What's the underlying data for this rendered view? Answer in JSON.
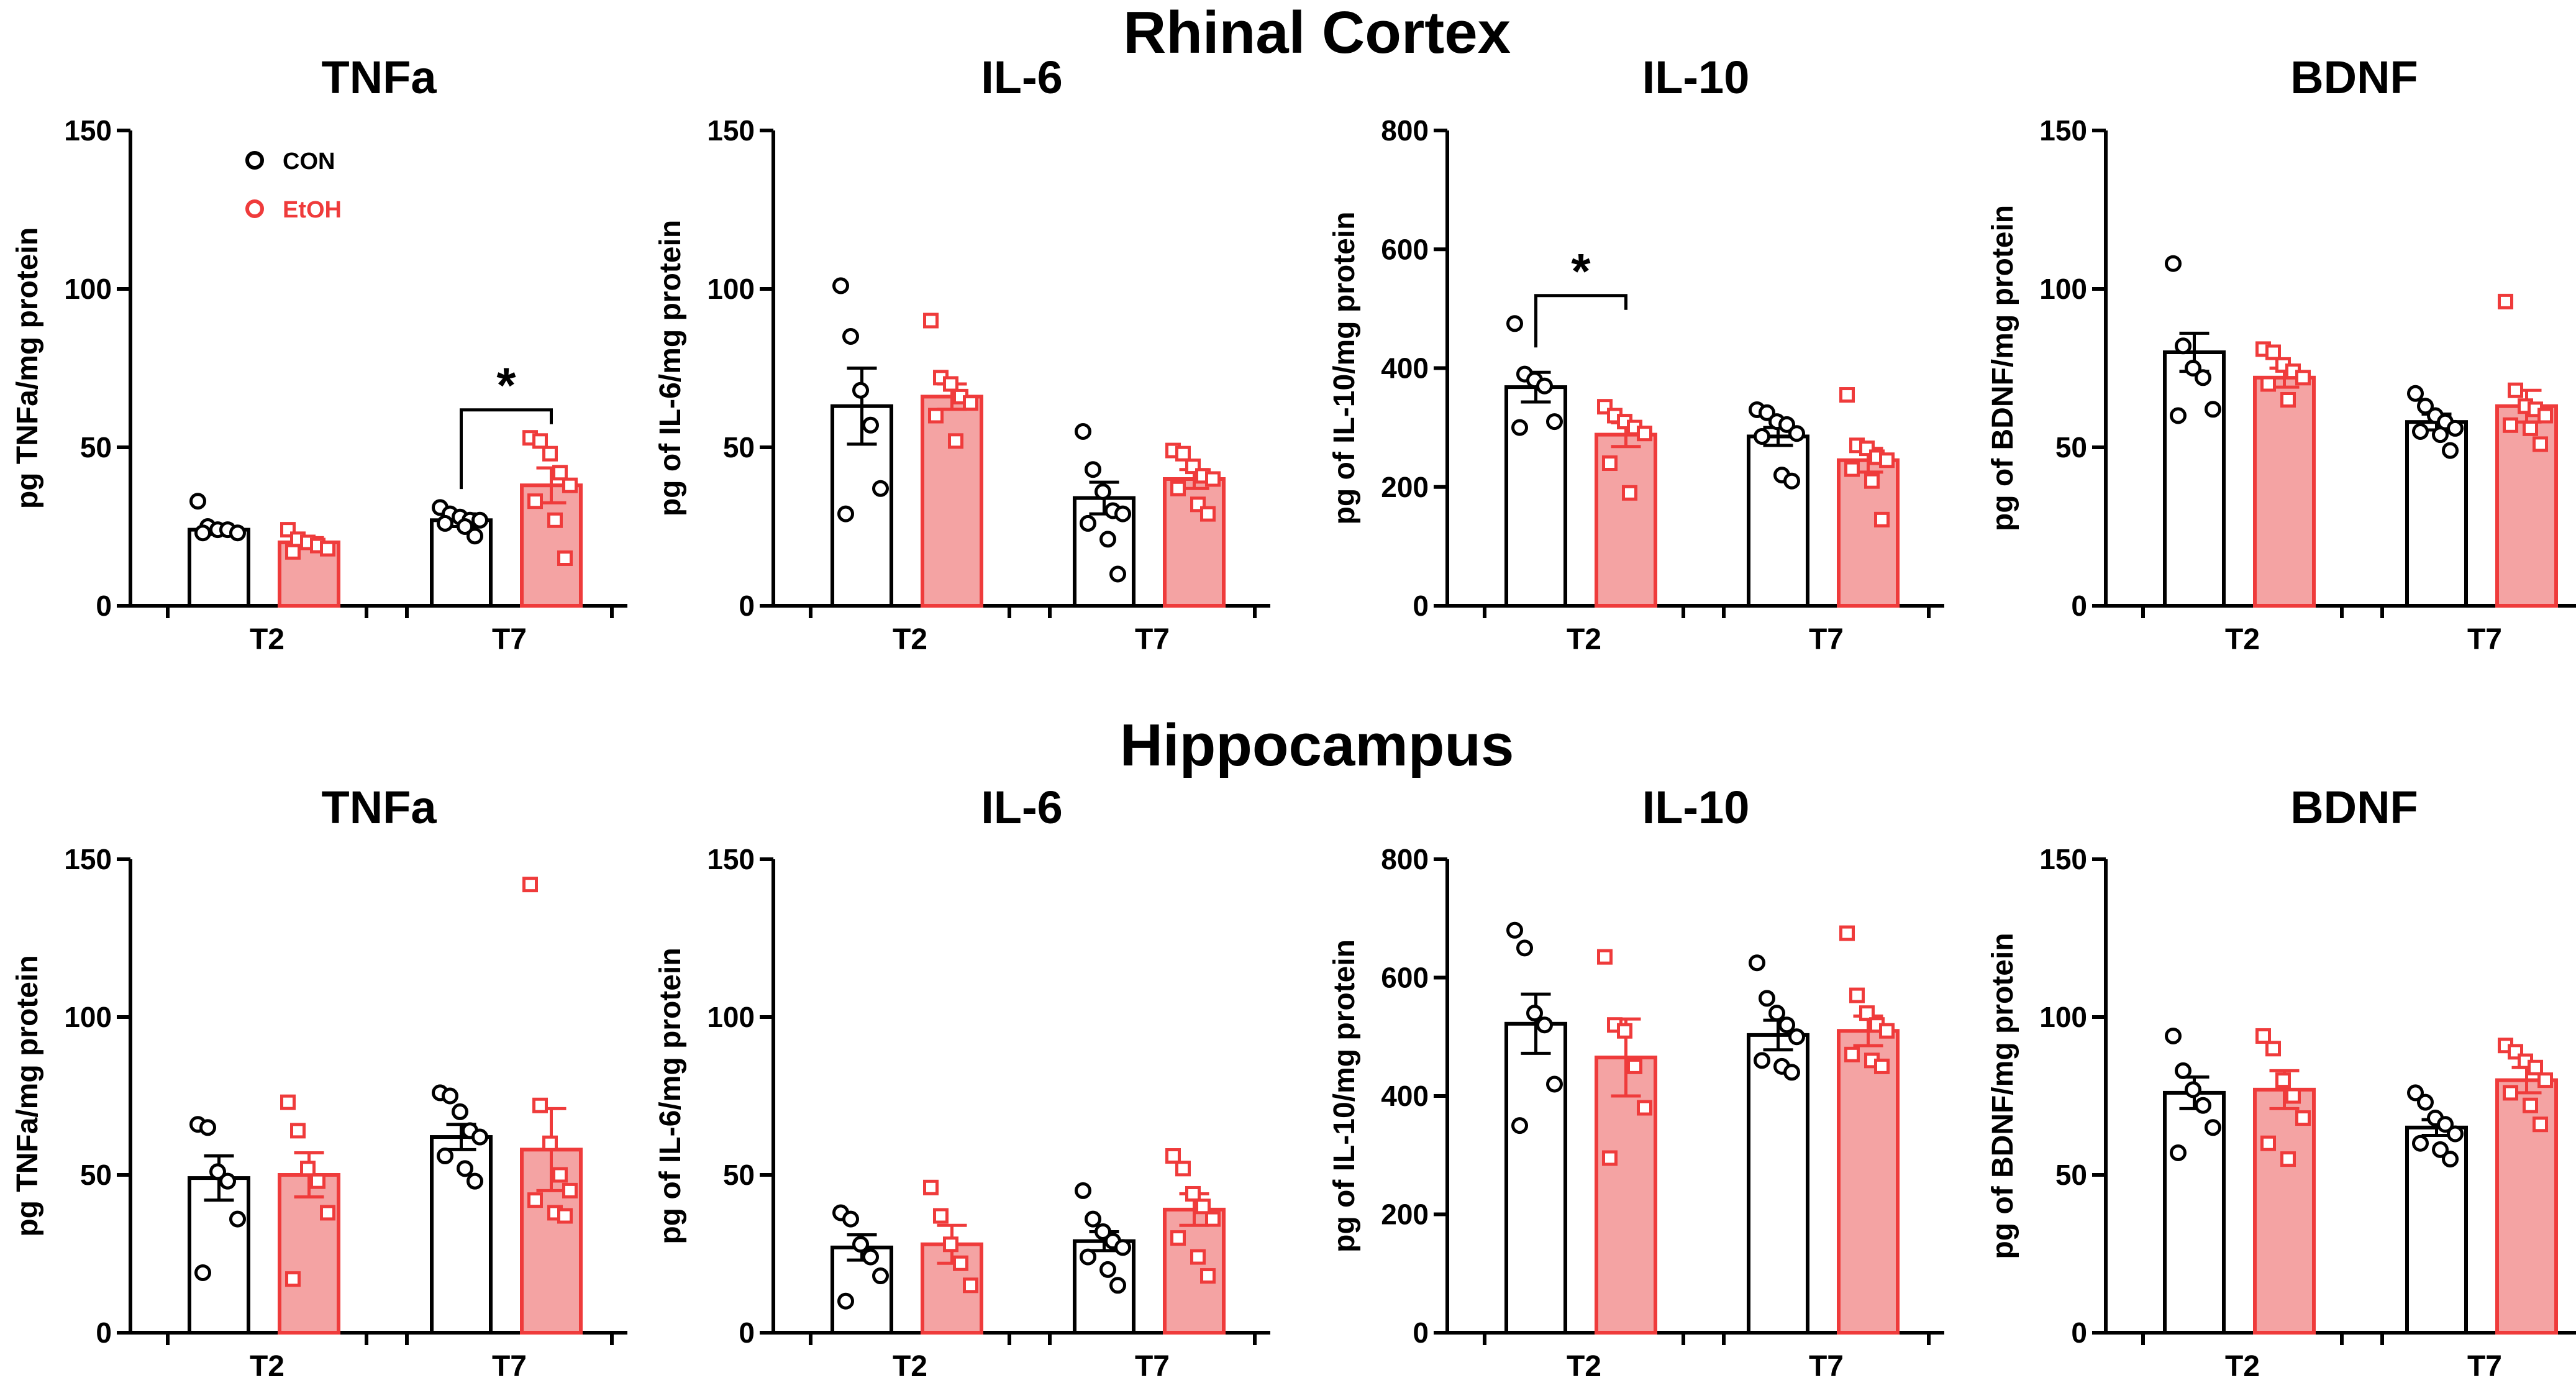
{
  "colors": {
    "con": "#000000",
    "etoh": "#ef3b3b",
    "etoh_fill": "#f4a3a3",
    "axis": "#000000"
  },
  "sections": [
    {
      "title": "Rhinal Cortex"
    },
    {
      "title": "Hippocampus"
    }
  ],
  "legend": {
    "items": [
      {
        "label": "CON",
        "color": "#000000",
        "marker": "circle"
      },
      {
        "label": "EtOH",
        "color": "#ef3b3b",
        "marker": "circle"
      }
    ]
  },
  "chart_data": [
    {
      "type": "bar",
      "section": "Rhinal Cortex",
      "title": "TNFa",
      "ylabel": "pg TNFa/mg protein",
      "ylim": [
        0,
        150
      ],
      "yticks": [
        "0",
        "50",
        "100",
        "150"
      ],
      "categories": [
        "T2",
        "T7"
      ],
      "series": [
        {
          "name": "CON",
          "values": [
            24,
            27
          ],
          "sem": [
            1.5,
            2
          ],
          "points": [
            [
              33,
              25,
              24,
              24,
              23,
              23
            ],
            [
              31,
              29,
              28,
              27,
              27,
              26,
              25,
              22
            ]
          ]
        },
        {
          "name": "EtOH",
          "values": [
            20,
            38
          ],
          "sem": [
            1.5,
            5.5
          ],
          "points": [
            [
              24,
              21,
              20,
              19,
              18,
              17
            ],
            [
              53,
              52,
              48,
              42,
              38,
              33,
              27,
              15
            ]
          ]
        }
      ],
      "significance": [
        {
          "category": "T7",
          "label": "*"
        }
      ],
      "legend": true
    },
    {
      "type": "bar",
      "section": "Rhinal Cortex",
      "title": "IL-6",
      "ylabel": "pg of IL-6/mg protein",
      "ylim": [
        0,
        150
      ],
      "yticks": [
        "0",
        "50",
        "100",
        "150"
      ],
      "categories": [
        "T2",
        "T7"
      ],
      "series": [
        {
          "name": "CON",
          "values": [
            63,
            34
          ],
          "sem": [
            12,
            5
          ],
          "points": [
            [
              101,
              85,
              68,
              57,
              37,
              29
            ],
            [
              55,
              43,
              36,
              30,
              29,
              26,
              21,
              10
            ]
          ]
        },
        {
          "name": "EtOH",
          "values": [
            66,
            40
          ],
          "sem": [
            4,
            3
          ],
          "points": [
            [
              90,
              72,
              70,
              66,
              64,
              60,
              52
            ],
            [
              49,
              48,
              44,
              41,
              40,
              37,
              32,
              29
            ]
          ]
        }
      ],
      "significance": []
    },
    {
      "type": "bar",
      "section": "Rhinal Cortex",
      "title": "IL-10",
      "ylabel": "pg of IL-10/mg protein",
      "ylim": [
        0,
        800
      ],
      "yticks": [
        "0",
        "200",
        "400",
        "600",
        "800"
      ],
      "categories": [
        "T2",
        "T7"
      ],
      "series": [
        {
          "name": "CON",
          "values": [
            368,
            285
          ],
          "sem": [
            25,
            15
          ],
          "points": [
            [
              475,
              390,
              380,
              370,
              310,
              300
            ],
            [
              330,
              325,
              310,
              305,
              290,
              285,
              220,
              210
            ]
          ]
        },
        {
          "name": "EtOH",
          "values": [
            288,
            245
          ],
          "sem": [
            20,
            20
          ],
          "points": [
            [
              335,
              320,
              310,
              300,
              290,
              240,
              190
            ],
            [
              355,
              270,
              265,
              250,
              245,
              230,
              210,
              145
            ]
          ]
        }
      ],
      "significance": [
        {
          "category": "T2",
          "label": "*"
        }
      ]
    },
    {
      "type": "bar",
      "section": "Rhinal Cortex",
      "title": "BDNF",
      "ylabel": "pg of BDNF/mg protein",
      "ylim": [
        0,
        150
      ],
      "yticks": [
        "0",
        "50",
        "100",
        "150"
      ],
      "categories": [
        "T2",
        "T7"
      ],
      "series": [
        {
          "name": "CON",
          "values": [
            80,
            58
          ],
          "sem": [
            6,
            2.5
          ],
          "points": [
            [
              108,
              82,
              75,
              72,
              62,
              60
            ],
            [
              67,
              63,
              60,
              58,
              56,
              55,
              54,
              49
            ]
          ]
        },
        {
          "name": "EtOH",
          "values": [
            72,
            63
          ],
          "sem": [
            3,
            5
          ],
          "points": [
            [
              81,
              80,
              76,
              74,
              72,
              70,
              65
            ],
            [
              96,
              68,
              63,
              62,
              60,
              57,
              56,
              51
            ]
          ]
        }
      ],
      "significance": []
    },
    {
      "type": "bar",
      "section": "Hippocampus",
      "title": "TNFa",
      "ylabel": "pg TNFa/mg protein",
      "ylim": [
        0,
        150
      ],
      "yticks": [
        "0",
        "50",
        "100",
        "150"
      ],
      "categories": [
        "T2",
        "T7"
      ],
      "series": [
        {
          "name": "CON",
          "values": [
            49,
            62
          ],
          "sem": [
            7,
            4
          ],
          "points": [
            [
              66,
              65,
              51,
              48,
              36,
              19
            ],
            [
              76,
              75,
              70,
              64,
              62,
              56,
              52,
              48
            ]
          ]
        },
        {
          "name": "EtOH",
          "values": [
            50,
            58
          ],
          "sem": [
            7,
            13
          ],
          "points": [
            [
              73,
              64,
              52,
              48,
              38,
              17
            ],
            [
              142,
              72,
              60,
              50,
              45,
              42,
              38,
              37
            ]
          ]
        }
      ],
      "significance": []
    },
    {
      "type": "bar",
      "section": "Hippocampus",
      "title": "IL-6",
      "ylabel": "pg of IL-6/mg protein",
      "ylim": [
        0,
        150
      ],
      "yticks": [
        "0",
        "50",
        "100",
        "150"
      ],
      "categories": [
        "T2",
        "T7"
      ],
      "series": [
        {
          "name": "CON",
          "values": [
            27,
            29
          ],
          "sem": [
            4,
            3
          ],
          "points": [
            [
              38,
              36,
              28,
              24,
              18,
              10
            ],
            [
              45,
              36,
              32,
              29,
              27,
              24,
              20,
              15
            ]
          ]
        },
        {
          "name": "EtOH",
          "values": [
            28,
            39
          ],
          "sem": [
            6,
            5
          ],
          "points": [
            [
              46,
              37,
              28,
              22,
              15
            ],
            [
              56,
              52,
              44,
              40,
              36,
              30,
              24,
              18
            ]
          ]
        }
      ],
      "significance": []
    },
    {
      "type": "bar",
      "section": "Hippocampus",
      "title": "IL-10",
      "ylabel": "pg of IL-10/mg protein",
      "ylim": [
        0,
        800
      ],
      "yticks": [
        "0",
        "200",
        "400",
        "600",
        "800"
      ],
      "categories": [
        "T2",
        "T7"
      ],
      "series": [
        {
          "name": "CON",
          "values": [
            522,
            503
          ],
          "sem": [
            50,
            25
          ],
          "points": [
            [
              680,
              650,
              540,
              520,
              420,
              350
            ],
            [
              625,
              565,
              540,
              520,
              500,
              460,
              450,
              440
            ]
          ]
        },
        {
          "name": "EtOH",
          "values": [
            465,
            510
          ],
          "sem": [
            65,
            25
          ],
          "points": [
            [
              635,
              520,
              510,
              450,
              380,
              295
            ],
            [
              675,
              570,
              540,
              520,
              510,
              470,
              460,
              450
            ]
          ]
        }
      ],
      "significance": []
    },
    {
      "type": "bar",
      "section": "Hippocampus",
      "title": "BDNF",
      "ylabel": "pg of BDNF/mg protein",
      "ylim": [
        0,
        150
      ],
      "yticks": [
        "0",
        "50",
        "100",
        "150"
      ],
      "categories": [
        "T2",
        "T7"
      ],
      "series": [
        {
          "name": "CON",
          "values": [
            76,
            65
          ],
          "sem": [
            5,
            2.5
          ],
          "points": [
            [
              94,
              83,
              77,
              72,
              65,
              57
            ],
            [
              76,
              73,
              68,
              66,
              63,
              60,
              58,
              55
            ]
          ]
        },
        {
          "name": "EtOH",
          "values": [
            77,
            80
          ],
          "sem": [
            6,
            4
          ],
          "points": [
            [
              94,
              90,
              80,
              75,
              68,
              60,
              55
            ],
            [
              91,
              89,
              86,
              84,
              80,
              76,
              72,
              66
            ]
          ]
        }
      ],
      "significance": []
    }
  ]
}
